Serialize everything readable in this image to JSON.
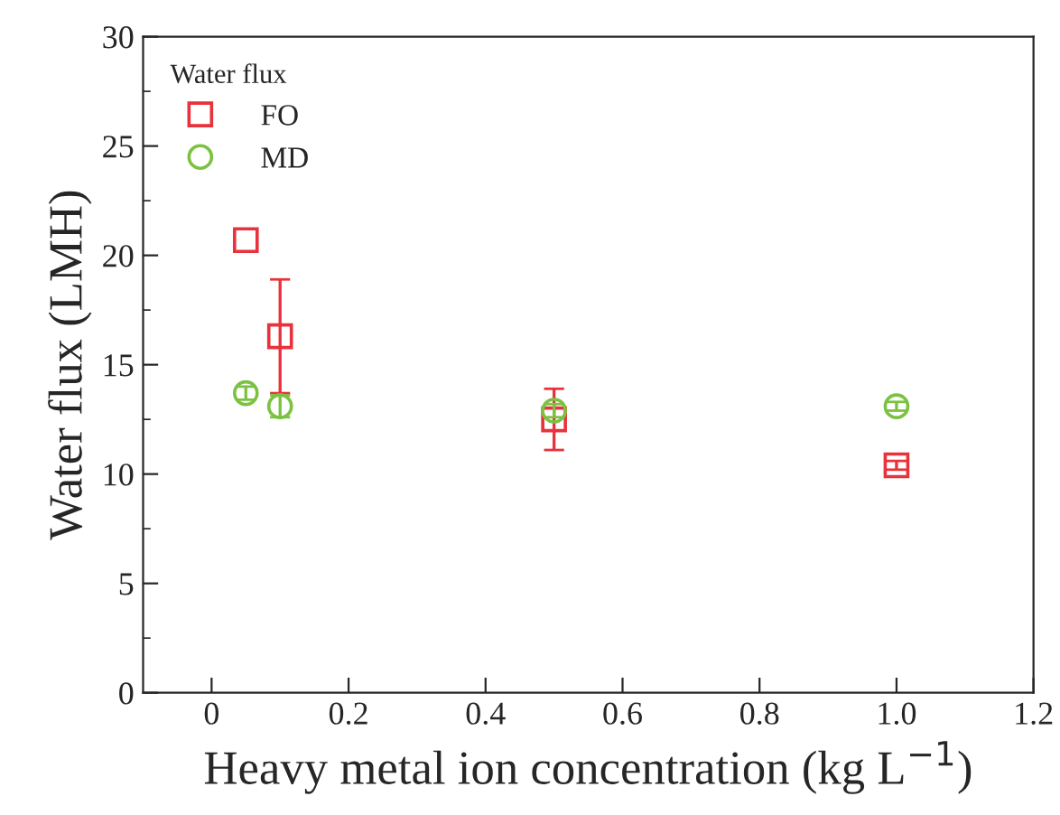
{
  "chart_data": {
    "type": "scatter",
    "xlabel": "Heavy metal ion concentration (kg L$^{−1}$)",
    "ylabel": "Water flux (LMH)",
    "legend_title": "Water flux",
    "legend": "top left",
    "series": [
      {
        "name": "FO",
        "color": "#e8323c",
        "marker": "square",
        "x": [
          0.05,
          0.1,
          0.5,
          1.0
        ],
        "values": [
          20.7,
          16.3,
          12.5,
          10.4
        ],
        "errors": [
          null,
          2.6,
          1.4,
          0.2
        ]
      },
      {
        "name": "MD",
        "color": "#7cc242",
        "marker": "circle",
        "x": [
          0.05,
          0.1,
          0.5,
          1.0
        ],
        "values": [
          13.7,
          13.1,
          12.9,
          13.1
        ],
        "errors": [
          0.3,
          0.5,
          0.3,
          0.2
        ]
      }
    ],
    "xlim": [
      -0.1,
      1.2
    ],
    "xticks": [
      0,
      0.2,
      0.4,
      0.6,
      0.8,
      {
        "value": 1.0,
        "label": "1.0"
      },
      1.2
    ],
    "ylim": [
      0,
      30
    ],
    "yticks": [
      0,
      5,
      10,
      15,
      20,
      25,
      30
    ],
    "grid": false
  }
}
